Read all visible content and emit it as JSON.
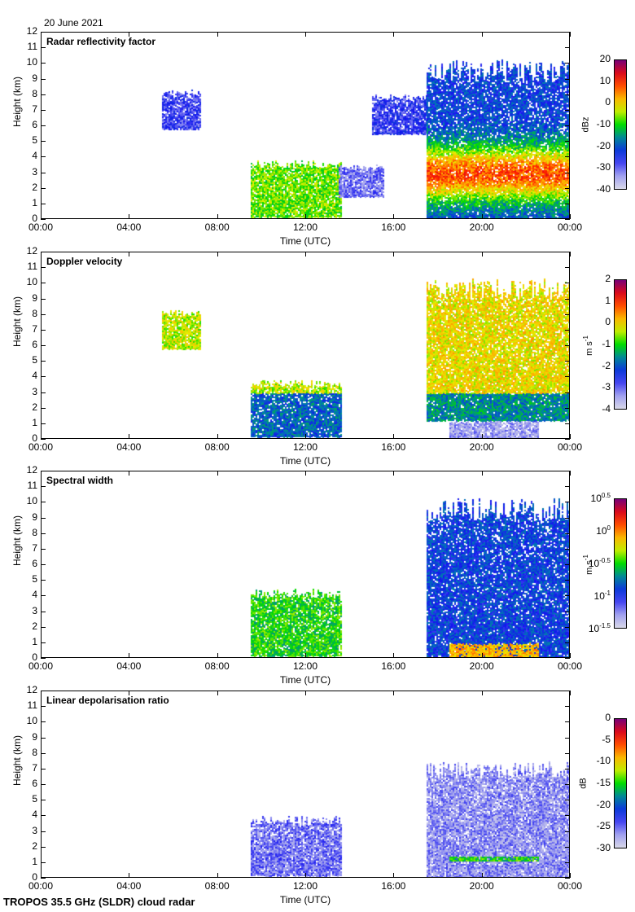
{
  "date": "20 June 2021",
  "footer": "TROPOS 35.5 GHz (SLDR) cloud radar",
  "chart_data": [
    {
      "type": "heatmap",
      "title": "Radar reflectivity factor",
      "xlabel": "Time (UTC)",
      "ylabel": "Height (km)",
      "xticks": [
        "00:00",
        "04:00",
        "08:00",
        "12:00",
        "16:00",
        "20:00",
        "00:00"
      ],
      "xlim_hours": [
        0,
        24
      ],
      "yticks": [
        0,
        1,
        2,
        3,
        4,
        5,
        6,
        7,
        8,
        9,
        10,
        11,
        12
      ],
      "ylim": [
        0,
        12
      ],
      "colorbar": {
        "unit": "dBz",
        "ticks": [
          "20",
          "10",
          "0",
          "-10",
          "-20",
          "-30",
          "-40"
        ],
        "range": [
          -40,
          20
        ]
      },
      "features": [
        {
          "t": [
            5.5,
            7.2
          ],
          "h": [
            5.8,
            8.3
          ],
          "level": 0.2,
          "desc": "mid-level patches 05:30-07:00"
        },
        {
          "t": [
            9.5,
            13.6
          ],
          "h": [
            0.2,
            3.8
          ],
          "level": 0.55,
          "desc": "low cloud 10:00-13:30 peak ~12:50"
        },
        {
          "t": [
            13.5,
            15.5
          ],
          "h": [
            1.5,
            3.5
          ],
          "level": 0.15,
          "desc": "weak echoes"
        },
        {
          "t": [
            15.0,
            17.5
          ],
          "h": [
            5.5,
            8.0
          ],
          "level": 0.22,
          "desc": "mid-level cloud"
        },
        {
          "t": [
            17.5,
            24.0
          ],
          "h": [
            0.0,
            10.3
          ],
          "level": 0.6,
          "desc": "deep precipitating system, max ~15 dBz at 2-4 km"
        }
      ]
    },
    {
      "type": "heatmap",
      "title": "Doppler velocity",
      "xlabel": "Time (UTC)",
      "ylabel": "Height (km)",
      "xticks": [
        "00:00",
        "04:00",
        "08:00",
        "12:00",
        "16:00",
        "20:00",
        "00:00"
      ],
      "xlim_hours": [
        0,
        24
      ],
      "yticks": [
        0,
        1,
        2,
        3,
        4,
        5,
        6,
        7,
        8,
        9,
        10,
        11,
        12
      ],
      "ylim": [
        0,
        12
      ],
      "colorbar": {
        "unit": "m s-1",
        "ticks": [
          "2",
          "1",
          "0",
          "-1",
          "-2",
          "-3",
          "-4"
        ],
        "range": [
          -4,
          2
        ]
      },
      "features": [
        {
          "t": [
            5.5,
            7.2
          ],
          "h": [
            5.8,
            8.3
          ],
          "level": 0.5
        },
        {
          "t": [
            9.5,
            13.6
          ],
          "h": [
            0.2,
            3.8
          ],
          "level": 0.5
        },
        {
          "t": [
            17.5,
            24.0
          ],
          "h": [
            1.2,
            10.3
          ],
          "level": 0.55
        },
        {
          "t": [
            18.5,
            22.5
          ],
          "h": [
            0.0,
            1.2
          ],
          "level": 0.1
        }
      ]
    },
    {
      "type": "heatmap",
      "title": "Spectral width",
      "xlabel": "Time (UTC)",
      "ylabel": "Height (km)",
      "xticks": [
        "00:00",
        "04:00",
        "08:00",
        "12:00",
        "16:00",
        "20:00",
        "00:00"
      ],
      "xlim_hours": [
        0,
        24
      ],
      "yticks": [
        0,
        1,
        2,
        3,
        4,
        5,
        6,
        7,
        8,
        9,
        10,
        11,
        12
      ],
      "ylim": [
        0,
        12
      ],
      "colorbar": {
        "unit": "m s-1",
        "ticks": [
          "10^0.5",
          "10^0",
          "10^-0.5",
          "10^-1",
          "10^-1.5"
        ],
        "range_log10": [
          -1.5,
          0.5
        ]
      },
      "features": [
        {
          "t": [
            9.5,
            13.6
          ],
          "h": [
            0.2,
            4.5
          ],
          "level": 0.5
        },
        {
          "t": [
            17.5,
            24.0
          ],
          "h": [
            0.0,
            10.3
          ],
          "level": 0.3
        },
        {
          "t": [
            18.5,
            22.5
          ],
          "h": [
            0.0,
            1.0
          ],
          "level": 0.7
        }
      ]
    },
    {
      "type": "heatmap",
      "title": "Linear depolarisation ratio",
      "xlabel": "Time (UTC)",
      "ylabel": "Height (km)",
      "xticks": [
        "00:00",
        "04:00",
        "08:00",
        "12:00",
        "16:00",
        "20:00",
        "00:00"
      ],
      "xlim_hours": [
        0,
        24
      ],
      "yticks": [
        0,
        1,
        2,
        3,
        4,
        5,
        6,
        7,
        8,
        9,
        10,
        11,
        12
      ],
      "ylim": [
        0,
        12
      ],
      "colorbar": {
        "unit": "dB",
        "ticks": [
          "0",
          "-5",
          "-10",
          "-15",
          "-20",
          "-25",
          "-30"
        ],
        "range": [
          -30,
          0
        ]
      },
      "features": [
        {
          "t": [
            9.5,
            13.6
          ],
          "h": [
            0.2,
            4.0
          ],
          "level": 0.15
        },
        {
          "t": [
            17.5,
            24.0
          ],
          "h": [
            0.0,
            7.5
          ],
          "level": 0.12
        },
        {
          "t": [
            18.5,
            22.5
          ],
          "h": [
            1.1,
            1.4
          ],
          "level": 0.5
        }
      ]
    }
  ]
}
